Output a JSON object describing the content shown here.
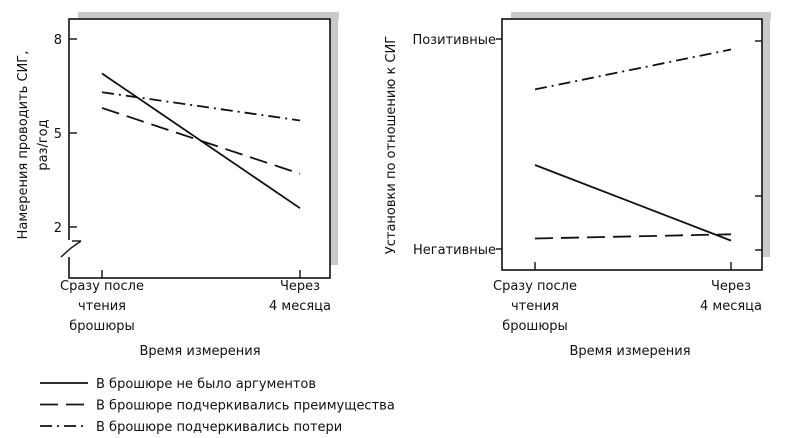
{
  "chart_data": [
    {
      "type": "line",
      "ylabel": [
        "Намерения проводить СИГ,",
        "раз/год"
      ],
      "xlabel": "Время измерения",
      "categories": [
        [
          "Сразу после",
          "чтения",
          "брошюры"
        ],
        [
          "Через",
          "4 месяца"
        ]
      ],
      "yticks": [
        "8",
        "5",
        "2"
      ],
      "ytick_values": [
        8,
        5,
        2
      ],
      "axis_break": true,
      "series": [
        {
          "name": "В брошюре не было аргументов",
          "style": "solid",
          "values": [
            6.9,
            2.6
          ]
        },
        {
          "name": "В брошюре подчеркивались преимущества",
          "style": "dashed",
          "values": [
            5.8,
            3.7
          ]
        },
        {
          "name": "В брошюре подчеркивались потери",
          "style": "dash-dot",
          "values": [
            6.3,
            5.4
          ]
        }
      ]
    },
    {
      "type": "line",
      "ylabel": "Установки по отношению к СИГ",
      "xlabel": "Время измерения",
      "categories": [
        [
          "Сразу после",
          "чтения",
          "брошюры"
        ],
        [
          "Через",
          "4 месяца"
        ]
      ],
      "yticks": [
        "Позитивные",
        "Негативные"
      ],
      "ytick_values": [
        1,
        0
      ],
      "series": [
        {
          "name": "В брошюре не было аргументов",
          "style": "solid",
          "values": [
            0.4,
            0.04
          ]
        },
        {
          "name": "В брошюре подчеркивались преимущества",
          "style": "dashed",
          "values": [
            0.05,
            0.07
          ]
        },
        {
          "name": "В брошюре подчеркивались потери",
          "style": "dash-dot",
          "values": [
            0.76,
            0.95
          ]
        }
      ]
    }
  ],
  "legend": {
    "placement": "bottom-left",
    "items": [
      {
        "label": "В брошюре не было аргументов",
        "style": "solid"
      },
      {
        "label": "В брошюре подчеркивались преимущества",
        "style": "dashed"
      },
      {
        "label": "В брошюре подчеркивались потери",
        "style": "dash-dot"
      }
    ]
  },
  "colors": {
    "line": "#111111",
    "shadow": "#c9c9c9"
  }
}
